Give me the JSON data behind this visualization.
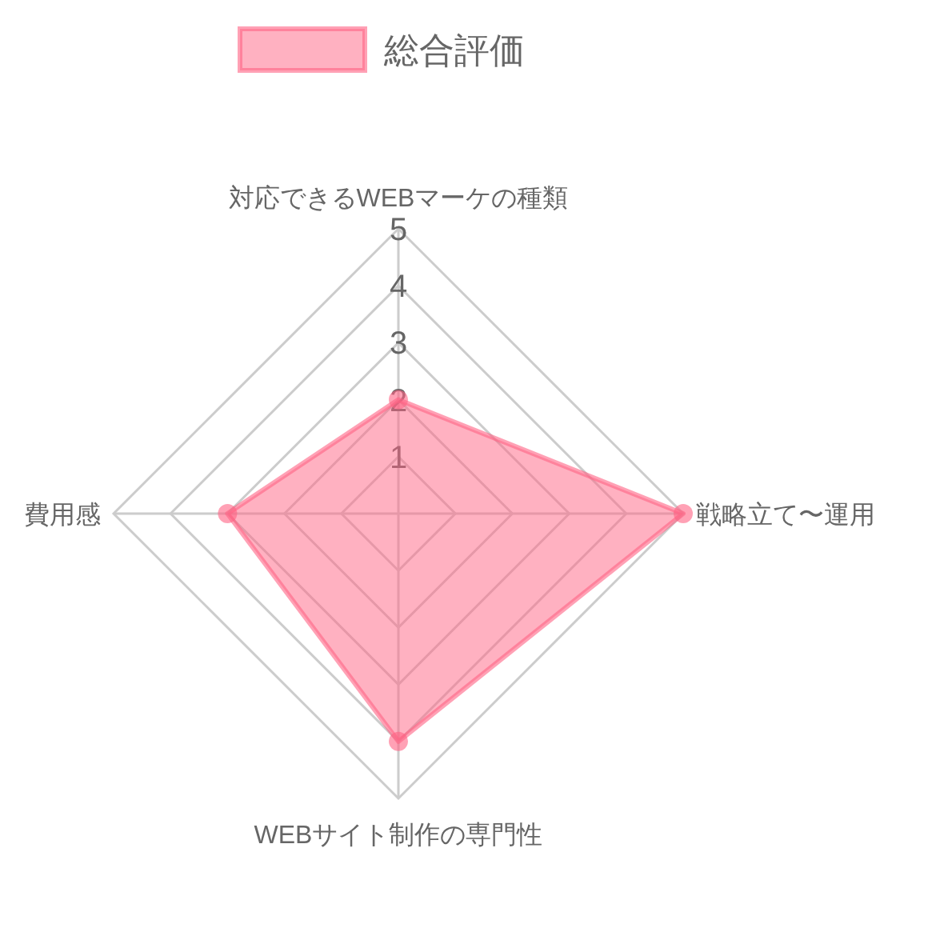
{
  "chart_data": {
    "type": "radar",
    "categories": [
      "対応できるWEBマーケの種類",
      "戦略立て〜運用",
      "WEBサイト制作の専門性",
      "費用感"
    ],
    "series": [
      {
        "name": "総合評価",
        "color": "#ff6384",
        "values": [
          2,
          5,
          4,
          3
        ]
      }
    ],
    "ylim": [
      0,
      5
    ],
    "yticks": [
      1,
      2,
      3,
      4,
      5
    ],
    "grid": true,
    "legend": "top",
    "marker": "circle"
  }
}
